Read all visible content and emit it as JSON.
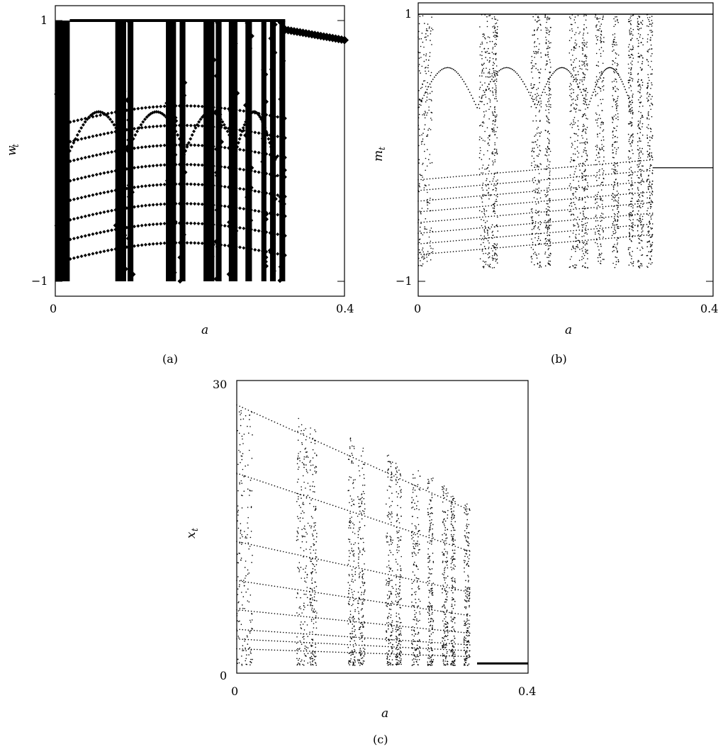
{
  "chart_data": [
    {
      "panel": "(a)",
      "type": "scatter",
      "title": "",
      "xlabel": "a",
      "ylabel": "w",
      "ylabel_sub": "t",
      "xlim": [
        0,
        0.4
      ],
      "ylim": [
        -1,
        1
      ],
      "x_ticks": [
        "0",
        "0.4"
      ],
      "y_ticks": [
        "1",
        "−1"
      ],
      "grid": false,
      "marker": "diamond",
      "chaotic_bands": [
        [
          0.0,
          0.02
        ],
        [
          0.083,
          0.098
        ],
        [
          0.1,
          0.108
        ],
        [
          0.153,
          0.167
        ],
        [
          0.172,
          0.18
        ],
        [
          0.205,
          0.22
        ],
        [
          0.222,
          0.23
        ],
        [
          0.24,
          0.252
        ],
        [
          0.263,
          0.272
        ],
        [
          0.285,
          0.292
        ],
        [
          0.297,
          0.305
        ],
        [
          0.31,
          0.318
        ]
      ],
      "stable_branch_after": {
        "x_start": 0.318,
        "value_start": 0.93,
        "value_end": 0.85
      },
      "period_branches": [
        {
          "from": 0.005,
          "to": 0.33,
          "y_start": 0.25,
          "y_end": 0.28
        },
        {
          "from": 0.005,
          "to": 0.33,
          "y_start": 0.05,
          "y_end": 0.22
        }
      ]
    },
    {
      "panel": "(b)",
      "type": "scatter",
      "title": "",
      "xlabel": "a",
      "ylabel": "m",
      "ylabel_sub": "t",
      "xlim": [
        0,
        0.4
      ],
      "ylim": [
        -1,
        1
      ],
      "x_ticks": [
        "0",
        "0.4"
      ],
      "y_ticks": [
        "1",
        "−1"
      ],
      "grid": false,
      "marker": "dot",
      "chaotic_bands": [
        [
          0.0,
          0.02
        ],
        [
          0.083,
          0.098
        ],
        [
          0.1,
          0.108
        ],
        [
          0.153,
          0.167
        ],
        [
          0.172,
          0.18
        ],
        [
          0.205,
          0.22
        ],
        [
          0.222,
          0.23
        ],
        [
          0.24,
          0.252
        ],
        [
          0.263,
          0.272
        ],
        [
          0.285,
          0.292
        ],
        [
          0.297,
          0.305
        ],
        [
          0.31,
          0.318
        ]
      ],
      "upper_line": 1,
      "stable_branch_after": {
        "x_start": 0.318,
        "value": -0.15
      }
    },
    {
      "panel": "(c)",
      "type": "scatter",
      "title": "",
      "xlabel": "a",
      "ylabel": "x",
      "ylabel_sub": "t",
      "xlim": [
        0,
        0.4
      ],
      "ylim": [
        0,
        30
      ],
      "x_ticks": [
        "0",
        "0.4"
      ],
      "y_ticks": [
        "30",
        "0"
      ],
      "grid": false,
      "marker": "dot",
      "chaotic_bands": [
        [
          0.0,
          0.022
        ],
        [
          0.082,
          0.098
        ],
        [
          0.1,
          0.11
        ],
        [
          0.153,
          0.163
        ],
        [
          0.166,
          0.176
        ],
        [
          0.205,
          0.215
        ],
        [
          0.218,
          0.226
        ],
        [
          0.24,
          0.252
        ],
        [
          0.262,
          0.27
        ],
        [
          0.282,
          0.29
        ],
        [
          0.294,
          0.3
        ],
        [
          0.312,
          0.32
        ]
      ],
      "band_top_start": 27,
      "band_top_end": 17.5,
      "stable_branch_after": {
        "x_start": 0.33,
        "value": 1
      }
    }
  ],
  "labels": {
    "panel_a": "(a)",
    "panel_b": "(b)",
    "panel_c": "(c)"
  }
}
